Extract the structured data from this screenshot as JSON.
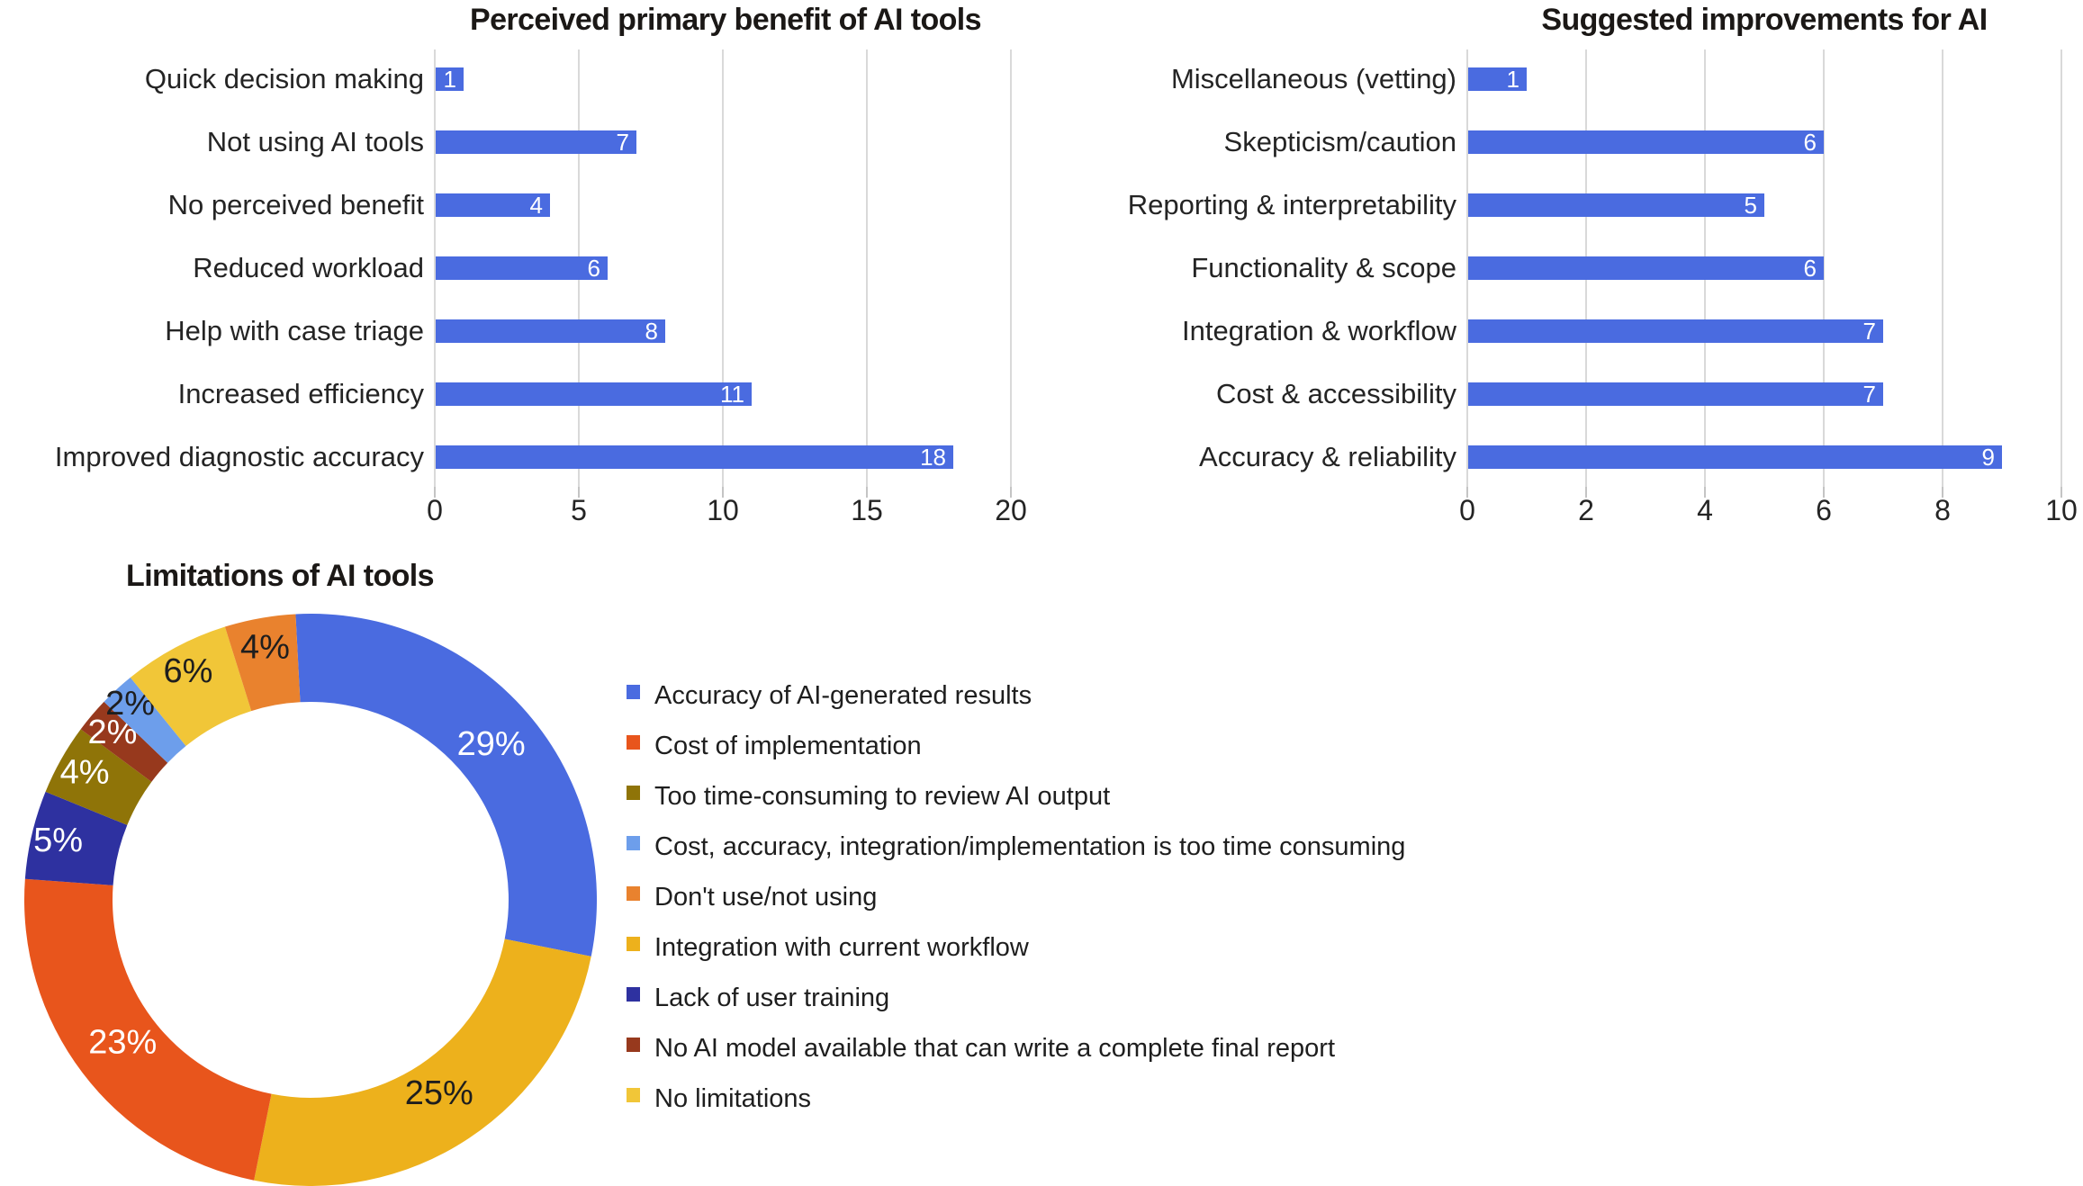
{
  "style": {
    "background": "#ffffff",
    "grid_color": "#d9d9d9",
    "tick_color": "#c4c4c4",
    "axis_text_color": "#242424",
    "title_color": "#1b1816",
    "bar_color": "#4a6be0",
    "bar_value_text_color": "#ffffff"
  },
  "chart_data": [
    {
      "id": "benefits",
      "type": "bar",
      "orientation": "horizontal",
      "title": "Perceived primary benefit of AI tools",
      "categories": [
        "Quick decision making",
        "Not using AI tools",
        "No perceived benefit",
        "Reduced workload",
        "Help with case triage",
        "Increased efficiency",
        "Improved diagnostic accuracy"
      ],
      "values": [
        1,
        7,
        4,
        6,
        8,
        11,
        18
      ],
      "xticks": [
        0,
        5,
        10,
        15,
        20
      ],
      "xlim": [
        0,
        20
      ],
      "grid": true,
      "bar_color": "#4a6be0",
      "value_label_color": "#ffffff",
      "legend_position": "none"
    },
    {
      "id": "improvements",
      "type": "bar",
      "orientation": "horizontal",
      "title": "Suggested improvements for AI",
      "categories": [
        "Miscellaneous (vetting)",
        "Skepticism/caution",
        "Reporting & interpretability",
        "Functionality & scope",
        "Integration & workflow",
        "Cost & accessibility",
        "Accuracy & reliability"
      ],
      "values": [
        1,
        6,
        5,
        6,
        7,
        7,
        9
      ],
      "xticks": [
        0,
        2,
        4,
        6,
        8,
        10
      ],
      "xlim": [
        0,
        10
      ],
      "grid": true,
      "bar_color": "#4a6be0",
      "value_label_color": "#ffffff",
      "legend_position": "none"
    },
    {
      "id": "limitations",
      "type": "pie",
      "subtype": "donut",
      "title": "Limitations of AI tools",
      "start_angle_deg": -3,
      "clockwise": true,
      "slices": [
        {
          "label": "Accuracy of AI-generated results",
          "pct": 29,
          "pct_label": "29%",
          "color": "#4a6be0",
          "label_color": "#ffffff"
        },
        {
          "label": "Integration with current workflow",
          "pct": 25,
          "pct_label": "25%",
          "color": "#edb11c",
          "label_color": "#1e1e1e"
        },
        {
          "label": "Cost of implementation",
          "pct": 23,
          "pct_label": "23%",
          "color": "#e8551c",
          "label_color": "#ffffff"
        },
        {
          "label": "Lack of user training",
          "pct": 5,
          "pct_label": "5%",
          "color": "#2e31a0",
          "label_color": "#ffffff"
        },
        {
          "label": "Too time-consuming to review AI output",
          "pct": 4,
          "pct_label": "4%",
          "color": "#8f7408",
          "label_color": "#ffffff"
        },
        {
          "label": "No AI model available that can write a complete final report",
          "pct": 2,
          "pct_label": "2%",
          "color": "#97391d",
          "label_color": "#ffffff"
        },
        {
          "label": "Cost, accuracy, integration/implementation is too time consuming",
          "pct": 2,
          "pct_label": "2%",
          "color": "#6d9eeb",
          "label_color": "#1e1e1e"
        },
        {
          "label": "No limitations",
          "pct": 6,
          "pct_label": "6%",
          "color": "#f1c638",
          "label_color": "#1e1e1e"
        },
        {
          "label": "Don't use/not using",
          "pct": 4,
          "pct_label": "4%",
          "color": "#e9822e",
          "label_color": "#1e1e1e"
        }
      ],
      "legend_position": "right",
      "legend": [
        {
          "label": "Accuracy of AI-generated results",
          "color": "#4a6be0"
        },
        {
          "label": "Cost of implementation",
          "color": "#e8551c"
        },
        {
          "label": "Too time-consuming to review AI output",
          "color": "#8f7408"
        },
        {
          "label": "Cost, accuracy, integration/implementation is too time consuming",
          "color": "#6d9eeb"
        },
        {
          "label": "Don't use/not using",
          "color": "#e9822e"
        },
        {
          "label": "Integration with current workflow",
          "color": "#edb11c"
        },
        {
          "label": "Lack of user training",
          "color": "#2e31a0"
        },
        {
          "label": "No AI model available that can write a complete final report",
          "color": "#97391d"
        },
        {
          "label": "No limitations",
          "color": "#f1c638"
        }
      ]
    }
  ]
}
